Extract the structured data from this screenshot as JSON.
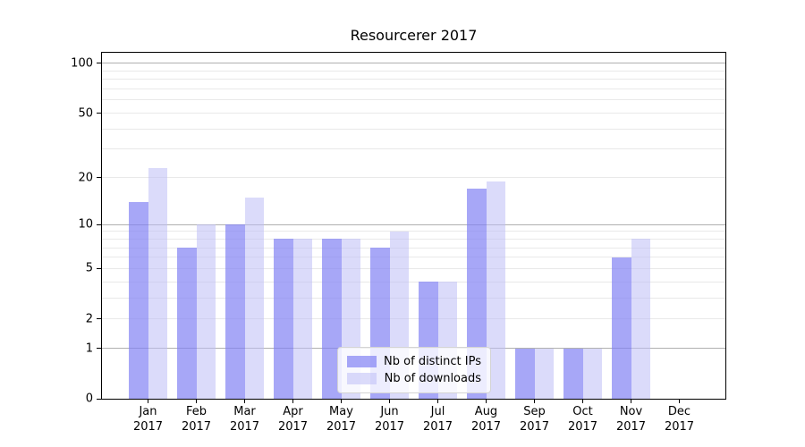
{
  "title": "Resourcerer 2017",
  "chart_data": {
    "type": "bar",
    "title": "Resourcerer 2017",
    "categories": [
      "Jan 2017",
      "Feb 2017",
      "Mar 2017",
      "Apr 2017",
      "May 2017",
      "Jun 2017",
      "Jul 2017",
      "Aug 2017",
      "Sep 2017",
      "Oct 2017",
      "Nov 2017",
      "Dec 2017"
    ],
    "series": [
      {
        "name": "Nb of distinct IPs",
        "color": "#8282f3",
        "alpha": 0.7,
        "values": [
          14,
          7,
          10,
          8,
          8,
          7,
          4,
          17,
          1,
          1,
          6,
          0
        ]
      },
      {
        "name": "Nb of downloads",
        "color": "#bebef5",
        "alpha": 0.55,
        "values": [
          23,
          10,
          15,
          8,
          8,
          9,
          4,
          19,
          1,
          1,
          8,
          0
        ]
      }
    ],
    "xlabel": "",
    "ylabel": "",
    "yscale": "log1p",
    "ylim": [
      0,
      115
    ],
    "yticks": [
      0,
      1,
      2,
      5,
      10,
      20,
      50,
      100
    ],
    "gridlines": {
      "major": [
        1,
        10,
        100
      ],
      "minor": [
        2,
        3,
        4,
        5,
        6,
        7,
        8,
        9,
        20,
        30,
        40,
        50,
        60,
        70,
        80,
        90
      ]
    },
    "legend_position": "lower center",
    "grid": "on"
  },
  "colors": {
    "major_grid": "#b0b0b0",
    "minor_grid": "#e9e9e9",
    "spine": "#000000",
    "text": "#000000",
    "legend_border": "#d4d4d4"
  }
}
